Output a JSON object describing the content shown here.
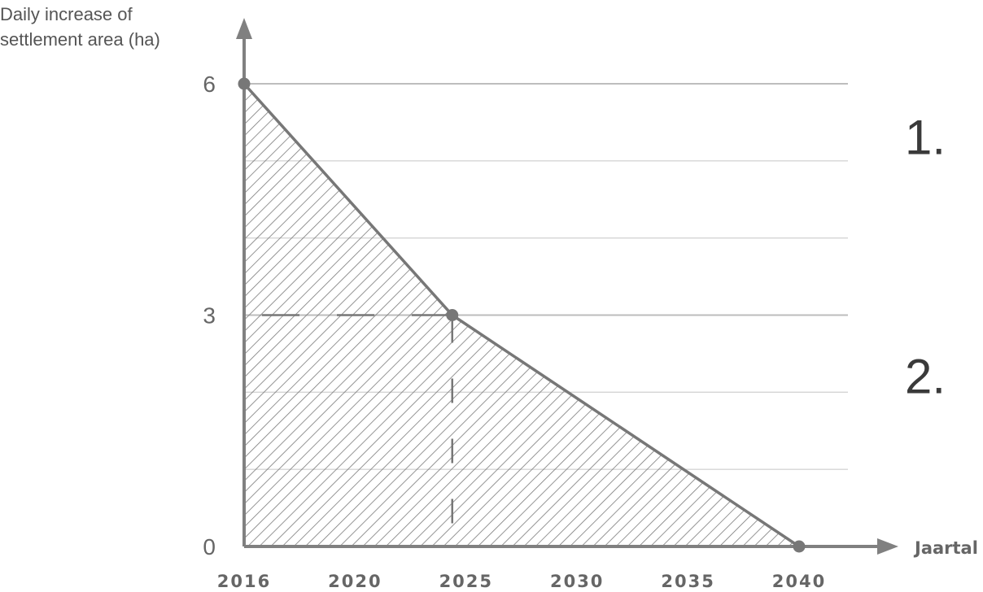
{
  "chart_data": {
    "type": "area",
    "ylabel_lines": [
      "Daily increase of",
      "settlement area (ha)"
    ],
    "xlabel": "Jaartal",
    "x_ticks": [
      {
        "label": "2016",
        "value": 2016
      },
      {
        "label": "2020",
        "value": 2020
      },
      {
        "label": "2025",
        "value": 2025
      },
      {
        "label": "2030",
        "value": 2030
      },
      {
        "label": "2035",
        "value": 2035
      },
      {
        "label": "2040",
        "value": 2040
      }
    ],
    "y_ticks": [
      {
        "label": "0",
        "value": 0
      },
      {
        "label": "3",
        "value": 3
      },
      {
        "label": "6",
        "value": 6
      }
    ],
    "xlim": [
      2016,
      2040
    ],
    "ylim": [
      0,
      6
    ],
    "series": [
      {
        "x": [
          2016,
          2025,
          2040
        ],
        "y": [
          6,
          3,
          0
        ]
      }
    ],
    "marked_points": [
      {
        "x": 2016,
        "y": 6
      },
      {
        "x": 2025,
        "y": 3
      },
      {
        "x": 2040,
        "y": 0
      }
    ],
    "reference_lines": {
      "x": 2025,
      "y": 3,
      "style": "dashed"
    },
    "fill": "hatched",
    "grid_y": [
      1,
      2,
      3,
      4,
      5,
      6
    ],
    "annotations": [
      {
        "text": "1.",
        "y": 5.3
      },
      {
        "text": "2.",
        "y": 2.2
      }
    ],
    "colors": {
      "line": "#777777",
      "grid": "#d4d4d4",
      "axis": "#808080",
      "hatch": "#7a7a7a"
    }
  }
}
